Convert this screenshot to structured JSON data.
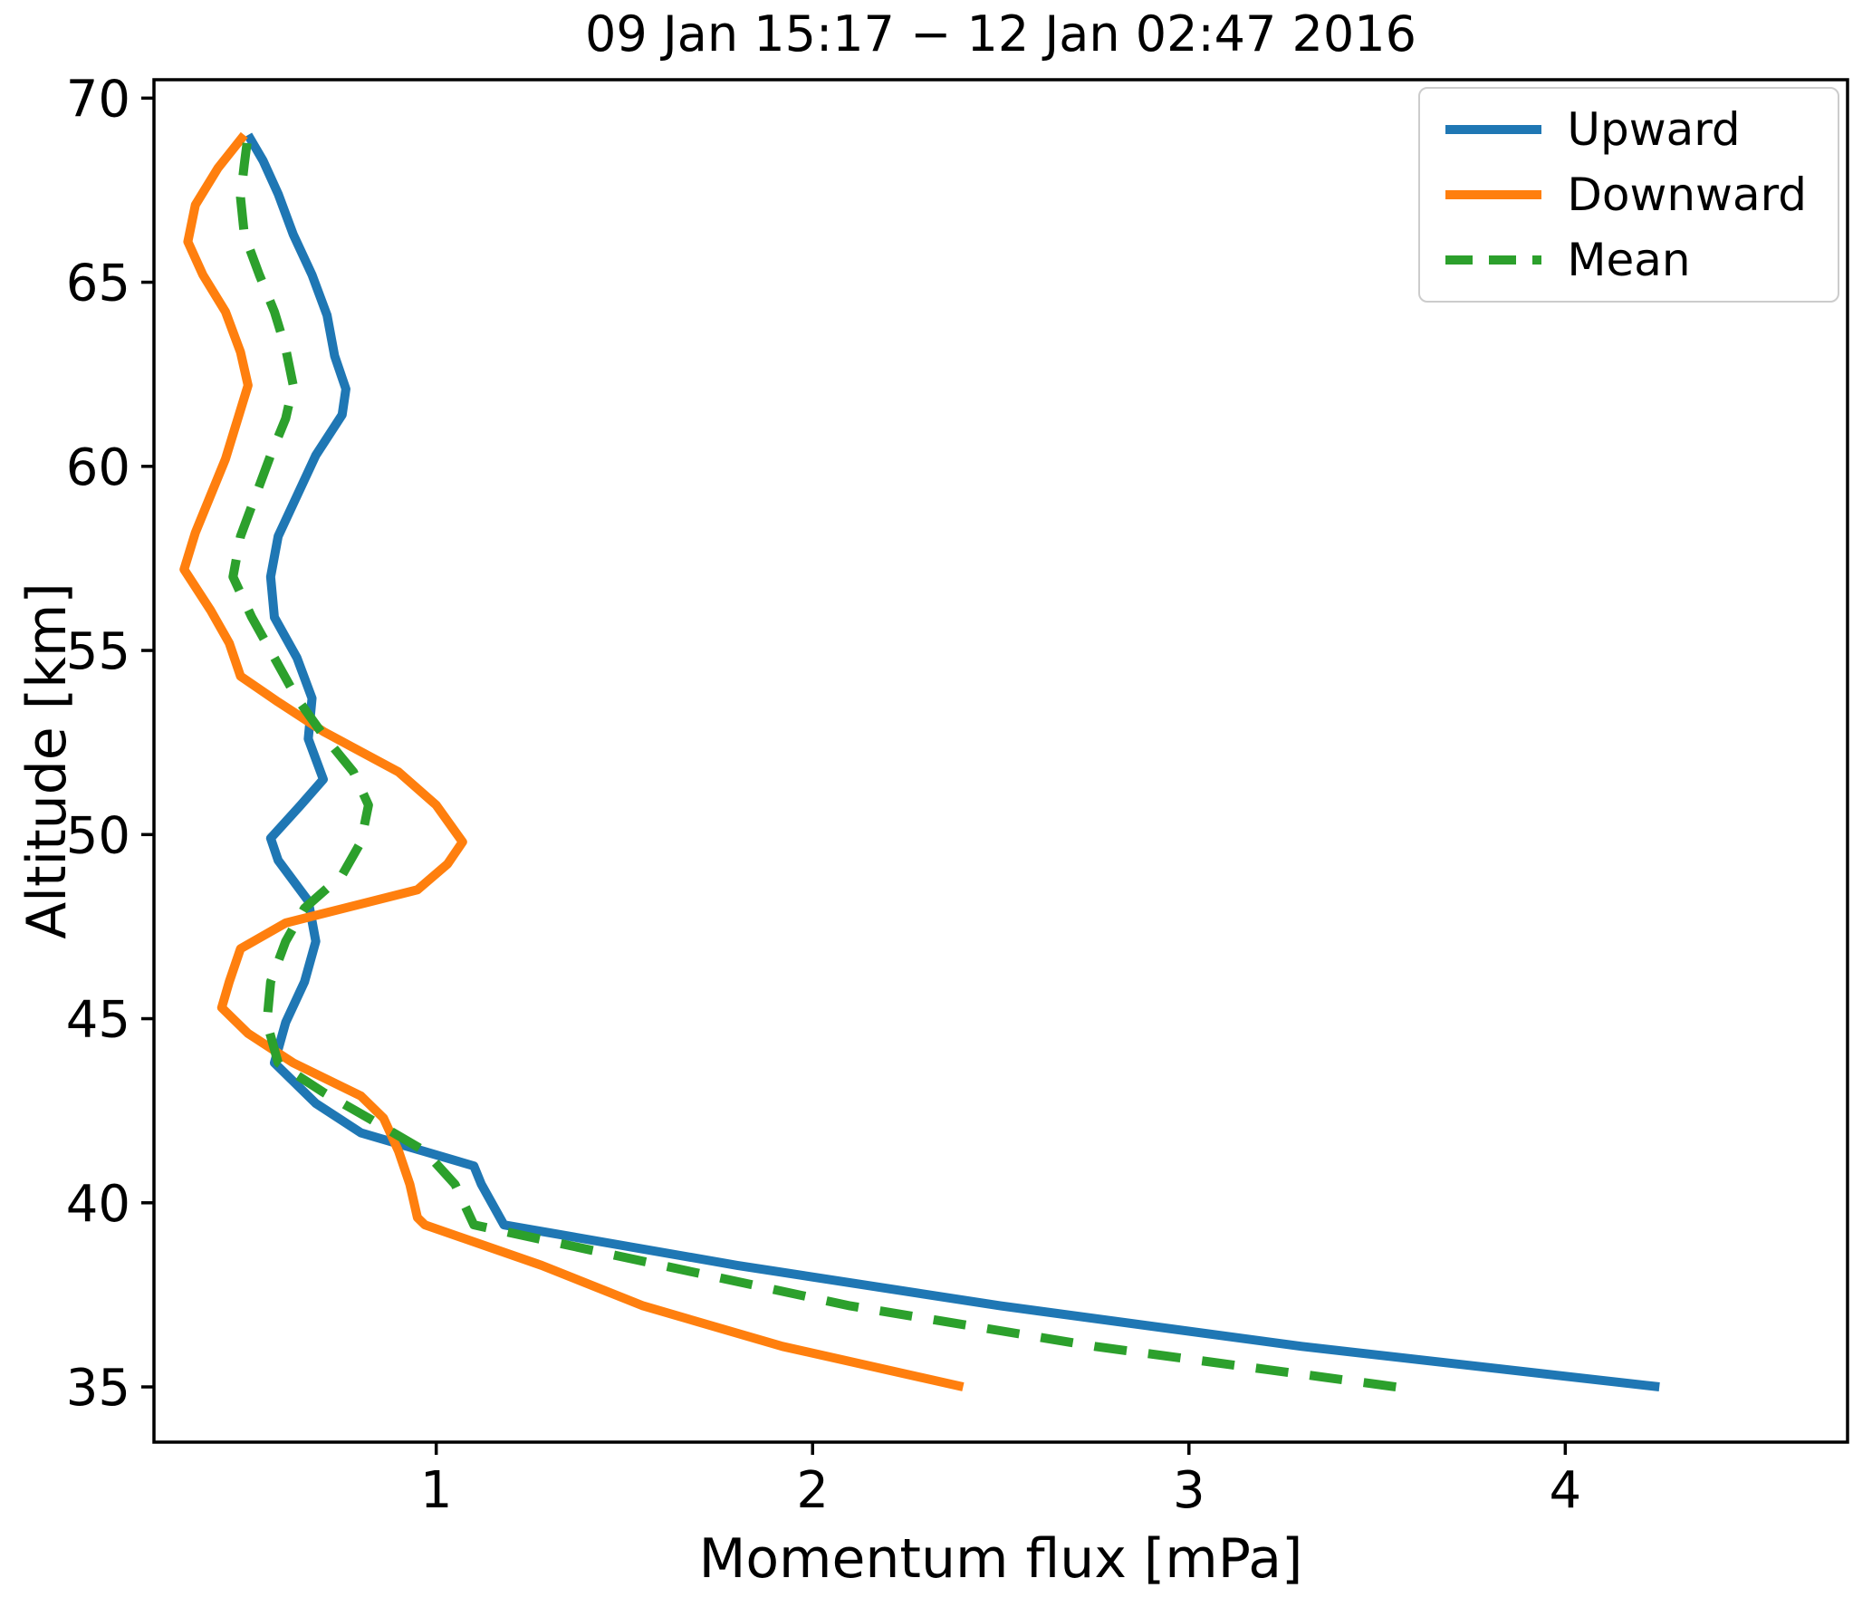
{
  "title": "09 Jan 15:17 − 12 Jan 02:47 2016",
  "xlabel": "Momentum flux [mPa]",
  "ylabel": "Altitude [km]",
  "chart_data": {
    "type": "line",
    "title": "09 Jan 15:17 − 12 Jan 02:47 2016",
    "xlabel": "Momentum flux [mPa]",
    "ylabel": "Altitude [km]",
    "xlim": [
      0.25,
      4.75
    ],
    "ylim": [
      33.5,
      70.5
    ],
    "xticks": [
      1,
      2,
      3,
      4
    ],
    "yticks": [
      35,
      40,
      45,
      50,
      55,
      60,
      65,
      70
    ],
    "grid": false,
    "legend_position": "upper right",
    "series": [
      {
        "name": "Upward",
        "color": "#1f77b4",
        "style": "solid",
        "points": [
          [
            4.25,
            35.0
          ],
          [
            3.3,
            36.1
          ],
          [
            2.5,
            37.2
          ],
          [
            1.8,
            38.3
          ],
          [
            1.18,
            39.4
          ],
          [
            1.12,
            40.5
          ],
          [
            1.1,
            41.0
          ],
          [
            0.8,
            41.9
          ],
          [
            0.68,
            42.7
          ],
          [
            0.57,
            43.8
          ],
          [
            0.6,
            44.9
          ],
          [
            0.65,
            46.0
          ],
          [
            0.68,
            47.1
          ],
          [
            0.66,
            48.2
          ],
          [
            0.58,
            49.3
          ],
          [
            0.56,
            49.9
          ],
          [
            0.64,
            50.8
          ],
          [
            0.7,
            51.5
          ],
          [
            0.66,
            52.6
          ],
          [
            0.67,
            53.7
          ],
          [
            0.63,
            54.8
          ],
          [
            0.57,
            55.9
          ],
          [
            0.56,
            57.0
          ],
          [
            0.58,
            58.1
          ],
          [
            0.63,
            59.2
          ],
          [
            0.68,
            60.3
          ],
          [
            0.75,
            61.4
          ],
          [
            0.76,
            62.1
          ],
          [
            0.73,
            63.0
          ],
          [
            0.71,
            64.1
          ],
          [
            0.67,
            65.2
          ],
          [
            0.62,
            66.3
          ],
          [
            0.58,
            67.4
          ],
          [
            0.54,
            68.3
          ],
          [
            0.5,
            69.0
          ]
        ]
      },
      {
        "name": "Downward",
        "color": "#ff7f0e",
        "style": "solid",
        "points": [
          [
            2.4,
            35.0
          ],
          [
            1.92,
            36.1
          ],
          [
            1.55,
            37.2
          ],
          [
            1.28,
            38.3
          ],
          [
            0.97,
            39.4
          ],
          [
            0.95,
            39.6
          ],
          [
            0.93,
            40.5
          ],
          [
            0.9,
            41.4
          ],
          [
            0.86,
            42.3
          ],
          [
            0.8,
            42.9
          ],
          [
            0.62,
            43.8
          ],
          [
            0.5,
            44.6
          ],
          [
            0.43,
            45.3
          ],
          [
            0.45,
            46.0
          ],
          [
            0.48,
            46.9
          ],
          [
            0.6,
            47.6
          ],
          [
            0.95,
            48.5
          ],
          [
            1.03,
            49.2
          ],
          [
            1.07,
            49.8
          ],
          [
            1.0,
            50.8
          ],
          [
            0.9,
            51.7
          ],
          [
            0.7,
            52.8
          ],
          [
            0.58,
            53.6
          ],
          [
            0.48,
            54.3
          ],
          [
            0.45,
            55.2
          ],
          [
            0.4,
            56.1
          ],
          [
            0.33,
            57.2
          ],
          [
            0.36,
            58.2
          ],
          [
            0.4,
            59.2
          ],
          [
            0.44,
            60.2
          ],
          [
            0.47,
            61.2
          ],
          [
            0.5,
            62.2
          ],
          [
            0.48,
            63.1
          ],
          [
            0.44,
            64.2
          ],
          [
            0.38,
            65.2
          ],
          [
            0.34,
            66.1
          ],
          [
            0.36,
            67.1
          ],
          [
            0.42,
            68.1
          ],
          [
            0.49,
            69.0
          ]
        ]
      },
      {
        "name": "Mean",
        "color": "#2ca02c",
        "style": "dashed",
        "points": [
          [
            3.55,
            35.0
          ],
          [
            2.75,
            36.1
          ],
          [
            2.1,
            37.2
          ],
          [
            1.6,
            38.3
          ],
          [
            1.1,
            39.4
          ],
          [
            1.05,
            40.5
          ],
          [
            0.97,
            41.4
          ],
          [
            0.82,
            42.3
          ],
          [
            0.7,
            43.0
          ],
          [
            0.58,
            43.8
          ],
          [
            0.55,
            44.9
          ],
          [
            0.56,
            46.0
          ],
          [
            0.6,
            47.1
          ],
          [
            0.65,
            48.0
          ],
          [
            0.75,
            48.9
          ],
          [
            0.8,
            49.8
          ],
          [
            0.82,
            50.8
          ],
          [
            0.78,
            51.7
          ],
          [
            0.7,
            52.7
          ],
          [
            0.63,
            53.7
          ],
          [
            0.57,
            54.8
          ],
          [
            0.51,
            55.9
          ],
          [
            0.46,
            57.0
          ],
          [
            0.48,
            58.1
          ],
          [
            0.52,
            59.2
          ],
          [
            0.56,
            60.3
          ],
          [
            0.6,
            61.3
          ],
          [
            0.62,
            62.2
          ],
          [
            0.6,
            63.2
          ],
          [
            0.57,
            64.2
          ],
          [
            0.53,
            65.2
          ],
          [
            0.49,
            66.3
          ],
          [
            0.48,
            67.3
          ],
          [
            0.49,
            68.2
          ],
          [
            0.5,
            69.0
          ]
        ]
      }
    ]
  }
}
